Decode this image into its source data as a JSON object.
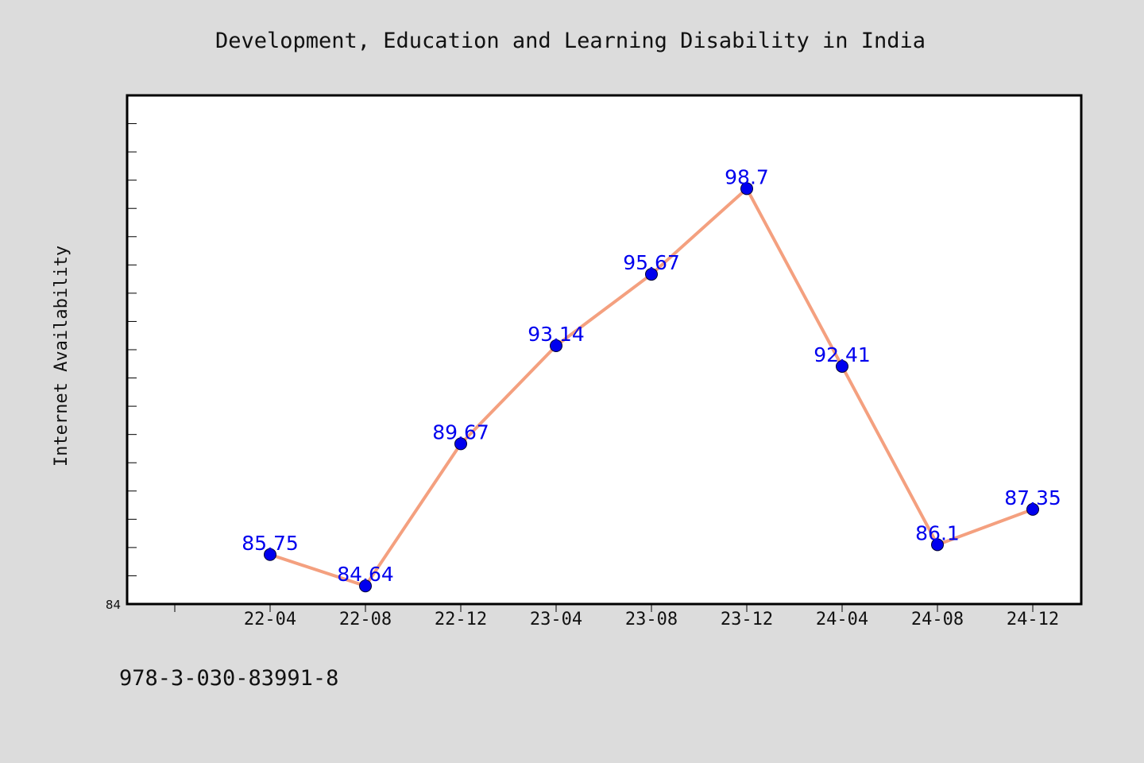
{
  "chart_data": {
    "type": "line",
    "title": "Development, Education and Learning Disability in India",
    "xlabel": "",
    "ylabel": "Internet Availability",
    "categories": [
      "22-04",
      "22-08",
      "22-12",
      "23-04",
      "23-08",
      "23-12",
      "24-04",
      "24-08",
      "24-12"
    ],
    "values": [
      85.75,
      84.64,
      89.67,
      93.14,
      95.67,
      98.7,
      92.41,
      86.1,
      87.35
    ],
    "data_labels": [
      "85.75",
      "84.64",
      "89.67",
      "93.14",
      "95.67",
      "98.7",
      "92.41",
      "86.1",
      "87.35"
    ],
    "ylim": [
      84,
      102
    ],
    "y_tick_labels": [
      "84"
    ],
    "grid": false,
    "legend": "none",
    "line_color": "#f4a07f",
    "marker_color": "#0000ee",
    "label_color": "#0000ee"
  },
  "footer": {
    "isbn": "978-3-030-83991-8"
  }
}
